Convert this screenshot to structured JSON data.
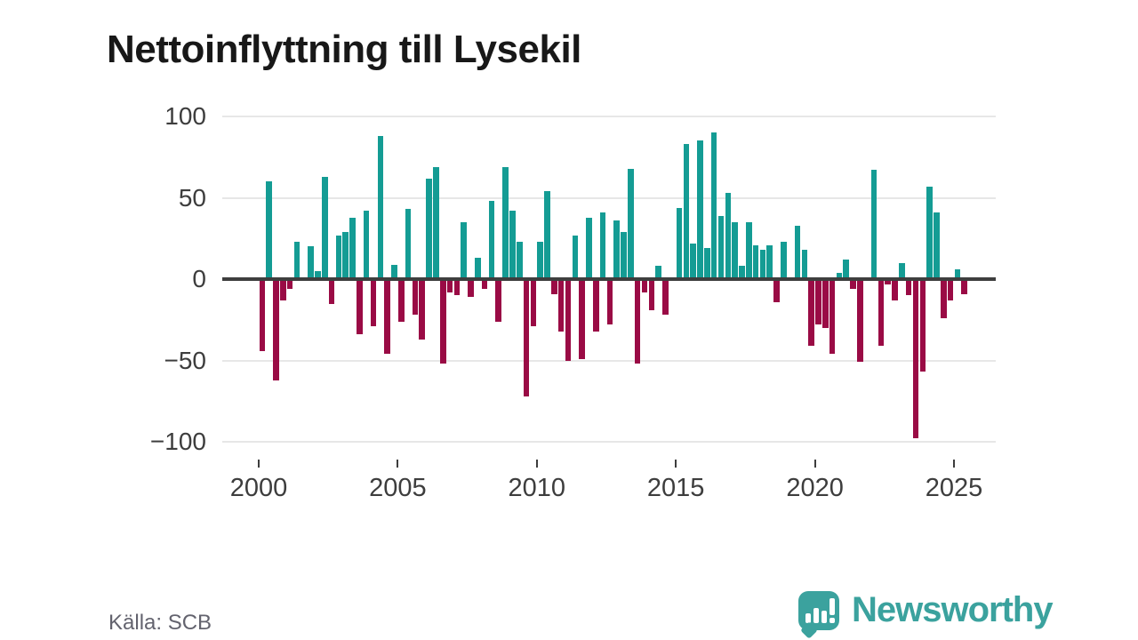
{
  "title": "Nettoinflyttning till Lysekil",
  "source": "Källa: SCB",
  "branding": {
    "name": "Newsworthy",
    "color": "#3BA29E"
  },
  "chart_data": {
    "type": "bar",
    "title": "Nettoinflyttning till Lysekil",
    "frequency": "quarterly",
    "start_period": "2000 Q1",
    "end_period": "2025 Q2",
    "xlabel": "",
    "ylabel": "",
    "ylim": [
      -110,
      110
    ],
    "grid": true,
    "y_ticks": [
      100,
      50,
      0,
      -50,
      -100
    ],
    "y_tick_labels": [
      "100",
      "50",
      "0",
      "−50",
      "−100"
    ],
    "x_tick_years": [
      2000,
      2005,
      2010,
      2015,
      2020,
      2025
    ],
    "x_tick_labels": [
      "2000",
      "2005",
      "2010",
      "2015",
      "2020",
      "2025"
    ],
    "positive_color": "#149C94",
    "negative_color": "#9A0B45",
    "values": [
      -44,
      60,
      -62,
      -13,
      -6,
      23,
      0,
      20,
      5,
      63,
      -15,
      27,
      29,
      38,
      -34,
      42,
      -29,
      88,
      -46,
      9,
      -26,
      43,
      -22,
      -37,
      62,
      69,
      -52,
      -8,
      -10,
      35,
      -11,
      13,
      -6,
      48,
      -26,
      69,
      42,
      23,
      -72,
      -29,
      23,
      54,
      -9,
      -32,
      -50,
      27,
      -49,
      38,
      -32,
      41,
      -28,
      36,
      29,
      68,
      -52,
      -8,
      -19,
      8,
      -22,
      0,
      44,
      83,
      22,
      85,
      19,
      90,
      39,
      53,
      35,
      8,
      35,
      21,
      18,
      21,
      -14,
      23,
      0,
      33,
      18,
      -41,
      -28,
      -30,
      -46,
      4,
      12,
      -6,
      -51,
      0,
      67,
      -41,
      -3,
      -13,
      10,
      -10,
      -98,
      -57,
      57,
      41,
      -24,
      -13,
      6,
      -9
    ]
  }
}
